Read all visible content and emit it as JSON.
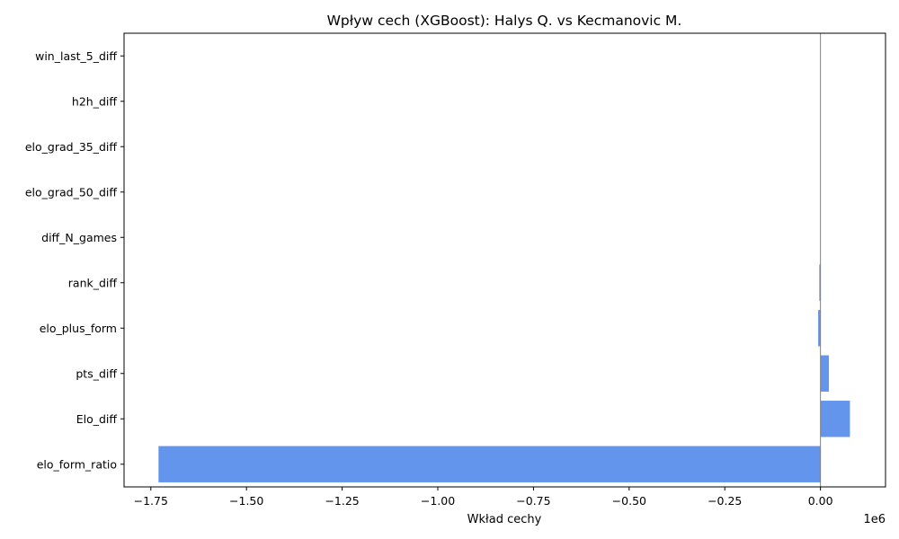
{
  "chart_data": {
    "type": "bar",
    "orientation": "horizontal",
    "title": "Wpływ cech (XGBoost): Halys Q. vs Kecmanovic M.",
    "xlabel": "Wkład cechy",
    "ylabel": "",
    "x_offset_label": "1e6",
    "xlim": [
      -1.82,
      0.17
    ],
    "x_scale_factor": 1000000,
    "xticks": [
      -1.75,
      -1.5,
      -1.25,
      -1.0,
      -0.75,
      -0.5,
      -0.25,
      0.0
    ],
    "xtick_labels": [
      "−1.75",
      "−1.50",
      "−1.25",
      "−1.00",
      "−0.75",
      "−0.50",
      "−0.25",
      "0.00"
    ],
    "categories": [
      "win_last_5_diff",
      "h2h_diff",
      "elo_grad_35_diff",
      "elo_grad_50_diff",
      "diff_N_games",
      "rank_diff",
      "elo_plus_form",
      "pts_diff",
      "Elo_diff",
      "elo_form_ratio"
    ],
    "values": [
      0,
      0,
      0,
      0,
      0,
      -0.003,
      -0.006,
      0.022,
      0.077,
      -1.73
    ],
    "bar_color": "#6495ed",
    "zero_line_color": "#808080",
    "grid": false,
    "legend": "none"
  }
}
